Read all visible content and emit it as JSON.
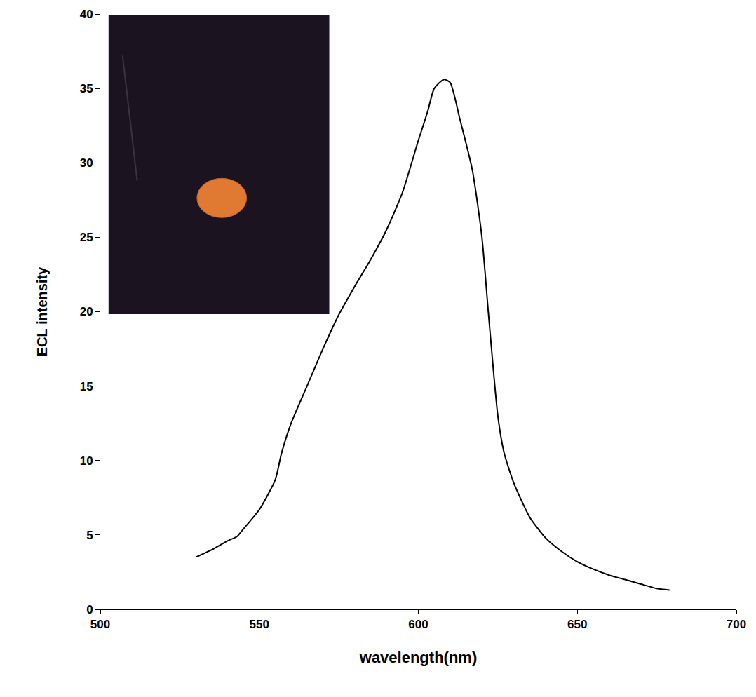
{
  "chart_data": {
    "type": "line",
    "xlabel": "wavelength(nm)",
    "ylabel": "ECL intensity",
    "x": [
      530,
      535,
      540,
      543,
      545,
      550,
      555,
      557,
      560,
      565,
      570,
      575,
      580,
      585,
      590,
      595,
      600,
      603,
      605,
      608,
      610,
      613,
      617,
      620,
      622,
      625,
      627,
      630,
      635,
      640,
      645,
      650,
      655,
      660,
      665,
      670,
      675,
      679
    ],
    "values": [
      3.5,
      4.0,
      4.6,
      4.9,
      5.4,
      6.7,
      8.7,
      10.5,
      12.5,
      15.0,
      17.5,
      19.8,
      21.7,
      23.5,
      25.5,
      28.0,
      31.5,
      33.5,
      35.0,
      35.6,
      35.4,
      33.0,
      29.5,
      25.0,
      20.0,
      13.0,
      10.5,
      8.5,
      6.2,
      4.8,
      3.9,
      3.2,
      2.7,
      2.3,
      2.0,
      1.7,
      1.4,
      1.3
    ],
    "color": "#000000",
    "xlim": [
      500,
      700
    ],
    "xticks": [
      500,
      550,
      600,
      650,
      700
    ],
    "ylim": [
      0,
      40
    ],
    "yticks": [
      0,
      5,
      10,
      15,
      20,
      25,
      30,
      35,
      40
    ],
    "grid": false
  }
}
